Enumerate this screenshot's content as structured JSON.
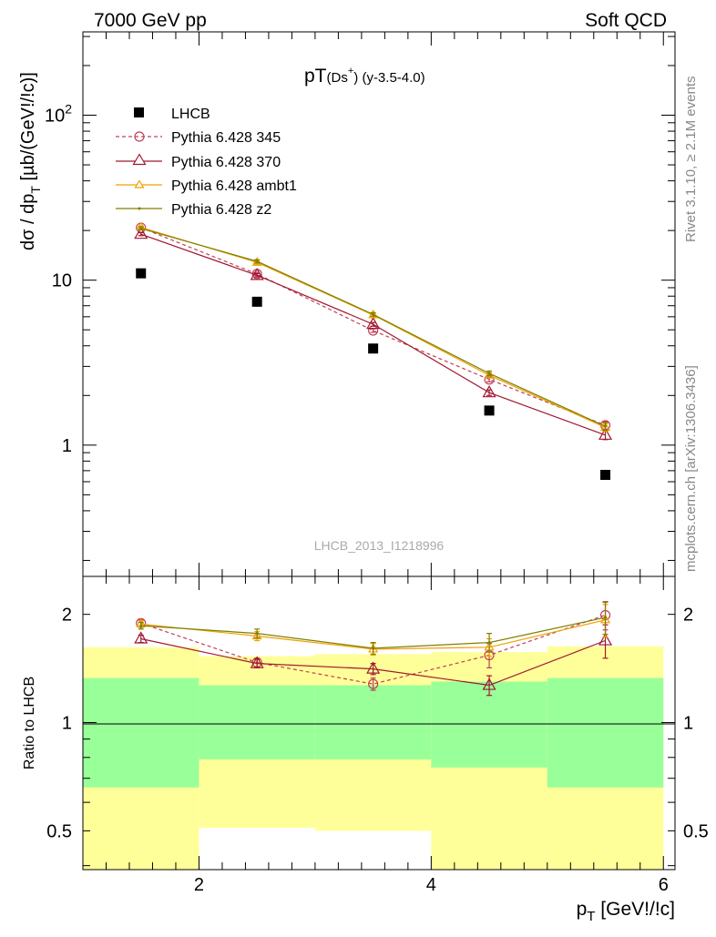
{
  "header": {
    "left": "7000 GeV pp",
    "right": "Soft QCD"
  },
  "side_labels": {
    "rivet": "Rivet 3.1.10, ≥ 2.1M events",
    "mcplots": "mcplots.cern.ch [arXiv:1306.3436]"
  },
  "colors": {
    "lhcb": "#000000",
    "p345": "#c0405a",
    "p370": "#a01830",
    "ambt1": "#f0a000",
    "z2": "#808000",
    "band_outer": "#ffff99",
    "band_inner": "#99ff99"
  },
  "chart_data": [
    {
      "type": "line",
      "title_main": "pT",
      "title_sub": "(Ds",
      "title_sup": "+",
      "title_tail": ") (y-3.5-4.0)",
      "ylabel": "dσ / dp",
      "ylabel_sub": "T",
      "ylabel_tail": " [µb/(GeV!/!c)]",
      "yscale": "log",
      "xlim": [
        1,
        6.1
      ],
      "ylim": [
        0.16,
        320
      ],
      "yticks_major": [
        {
          "value": 1,
          "label": "1"
        },
        {
          "value": 10,
          "label": "10"
        },
        {
          "value": 100,
          "label": "10",
          "sup": "2"
        }
      ],
      "legend_position": "top-left",
      "watermark": "LHCB_2013_I1218996",
      "x": [
        1.5,
        2.5,
        3.5,
        4.5,
        5.5
      ],
      "series": [
        {
          "name": "LHCB",
          "key": "lhcb",
          "marker": "square",
          "values": [
            11.0,
            7.4,
            3.85,
            1.62,
            0.66
          ]
        },
        {
          "name": "Pythia 6.428 345",
          "key": "p345",
          "marker": "circle",
          "dashed": true,
          "values": [
            20.8,
            10.9,
            4.95,
            2.5,
            1.32
          ],
          "err": [
            0.4,
            0.25,
            0.12,
            0.08,
            0.07
          ]
        },
        {
          "name": "Pythia 6.428 370",
          "key": "p370",
          "marker": "triangle",
          "values": [
            19.0,
            10.7,
            5.4,
            2.08,
            1.15
          ],
          "err": [
            0.4,
            0.25,
            0.14,
            0.08,
            0.07
          ]
        },
        {
          "name": "Pythia 6.428 ambt1",
          "key": "ambt1",
          "marker": "triangle-small",
          "values": [
            20.9,
            12.8,
            6.15,
            2.65,
            1.28
          ],
          "err": [
            0.4,
            0.3,
            0.15,
            0.09,
            0.07
          ]
        },
        {
          "name": "Pythia 6.428 z2",
          "key": "z2",
          "marker": "dot",
          "values": [
            20.6,
            13.0,
            6.2,
            2.72,
            1.3
          ],
          "err": [
            0.4,
            0.3,
            0.15,
            0.09,
            0.07
          ]
        }
      ]
    },
    {
      "type": "line",
      "ylabel": "Ratio to LHCB",
      "xlabel": "p",
      "xlabel_sub": "T",
      "xlabel_tail": " [GeV!/!c]",
      "yscale": "log",
      "xlim": [
        1,
        6.1
      ],
      "ylim": [
        0.39,
        2.55
      ],
      "xticks": [
        2,
        4,
        6
      ],
      "yticks_major": [
        {
          "value": 0.5,
          "label": "0.5"
        },
        {
          "value": 1,
          "label": "1"
        },
        {
          "value": 2,
          "label": "2"
        }
      ],
      "bands": [
        {
          "x0": 1,
          "x1": 2,
          "outer": [
            0.36,
            1.62
          ],
          "inner": [
            0.66,
            1.33
          ]
        },
        {
          "x0": 2,
          "x1": 3,
          "outer": [
            0.51,
            1.53
          ],
          "inner": [
            0.79,
            1.27
          ]
        },
        {
          "x0": 3,
          "x1": 4,
          "outer": [
            0.5,
            1.55
          ],
          "inner": [
            0.79,
            1.27
          ]
        },
        {
          "x0": 4,
          "x1": 5,
          "outer": [
            0.36,
            1.57
          ],
          "inner": [
            0.75,
            1.3
          ]
        },
        {
          "x0": 5,
          "x1": 6,
          "outer": [
            0.36,
            1.63
          ],
          "inner": [
            0.66,
            1.33
          ]
        }
      ],
      "x": [
        1.5,
        2.5,
        3.5,
        4.5,
        5.5
      ],
      "series": [
        {
          "name": "Pythia 6.428 345",
          "key": "p345",
          "marker": "circle",
          "dashed": true,
          "values": [
            1.89,
            1.47,
            1.28,
            1.54,
            1.99
          ],
          "err": [
            0.04,
            0.04,
            0.05,
            0.12,
            0.18
          ]
        },
        {
          "name": "Pythia 6.428 370",
          "key": "p370",
          "marker": "triangle",
          "values": [
            1.71,
            1.46,
            1.41,
            1.27,
            1.69
          ],
          "err": [
            0.04,
            0.04,
            0.05,
            0.08,
            0.18
          ]
        },
        {
          "name": "Pythia 6.428 ambt1",
          "key": "ambt1",
          "marker": "triangle-small",
          "values": [
            1.88,
            1.74,
            1.6,
            1.62,
            1.93
          ],
          "err": [
            0.04,
            0.05,
            0.06,
            0.09,
            0.2
          ]
        },
        {
          "name": "Pythia 6.428 z2",
          "key": "z2",
          "marker": "dot",
          "values": [
            1.86,
            1.77,
            1.61,
            1.67,
            1.96
          ],
          "err": [
            0.04,
            0.05,
            0.06,
            0.1,
            0.2
          ]
        }
      ]
    }
  ]
}
